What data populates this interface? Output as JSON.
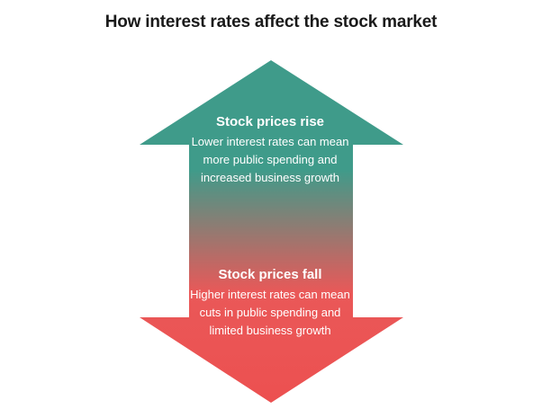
{
  "title": "How interest rates affect the stock market",
  "colors": {
    "top": "#3f9b8a",
    "bottom": "#ec5050",
    "title": "#1a1a1a",
    "text": "#ffffff"
  },
  "rise": {
    "heading": "Stock prices rise",
    "lines": [
      "Lower interest rates can mean",
      "more public spending and",
      "increased business growth"
    ]
  },
  "fall": {
    "heading": "Stock prices fall",
    "lines": [
      "Higher interest rates can mean",
      "cuts in public spending and",
      "limited business growth"
    ]
  }
}
